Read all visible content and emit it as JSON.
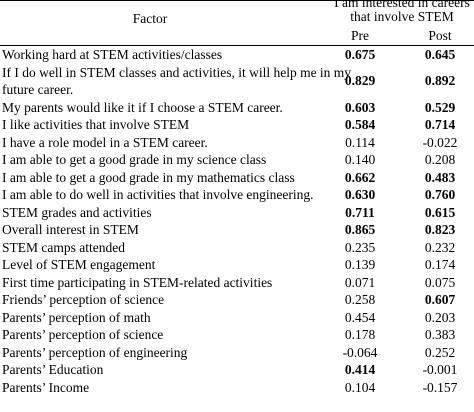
{
  "table": {
    "header": {
      "factor": "Factor",
      "group": [
        "I am interested in careers",
        "that involve STEM"
      ],
      "pre": "Pre",
      "post": "Post"
    },
    "rows": [
      {
        "factor": "Working hard at STEM activities/classes",
        "pre": "0.675",
        "post": "0.645",
        "pre_bold": true,
        "post_bold": true
      },
      {
        "factor": [
          "If I do well in STEM classes and activities, it will help me in my",
          "future career."
        ],
        "pre": "0.829",
        "post": "0.892",
        "pre_bold": true,
        "post_bold": true
      },
      {
        "factor": "My parents would like it if I choose a STEM career.",
        "pre": "0.603",
        "post": "0.529",
        "pre_bold": true,
        "post_bold": true
      },
      {
        "factor": "I like activities that involve STEM",
        "pre": "0.584",
        "post": "0.714",
        "pre_bold": true,
        "post_bold": true
      },
      {
        "factor": "I have a role model in a STEM career.",
        "pre": "0.114",
        "post": "-0.022",
        "pre_bold": false,
        "post_bold": false
      },
      {
        "factor": "I am able to get a good grade in my science class",
        "pre": "0.140",
        "post": "0.208",
        "pre_bold": false,
        "post_bold": false
      },
      {
        "factor": "I am able to get a good grade in my mathematics class",
        "pre": "0.662",
        "post": "0.483",
        "pre_bold": true,
        "post_bold": true
      },
      {
        "factor": "I am able to do well in activities that involve engineering.",
        "pre": "0.630",
        "post": "0.760",
        "pre_bold": true,
        "post_bold": true
      },
      {
        "factor": "STEM grades and activities",
        "pre": "0.711",
        "post": "0.615",
        "pre_bold": true,
        "post_bold": true
      },
      {
        "factor": "Overall interest in STEM",
        "pre": "0.865",
        "post": "0.823",
        "pre_bold": true,
        "post_bold": true
      },
      {
        "factor": "STEM camps attended",
        "pre": "0.235",
        "post": "0.232",
        "pre_bold": false,
        "post_bold": false
      },
      {
        "factor": "Level of STEM engagement",
        "pre": "0.139",
        "post": "0.174",
        "pre_bold": false,
        "post_bold": false
      },
      {
        "factor": "First time participating in STEM-related activities",
        "pre": "0.071",
        "post": "0.075",
        "pre_bold": false,
        "post_bold": false
      },
      {
        "factor": "Friends’ perception of science",
        "pre": "0.258",
        "post": "0.607",
        "pre_bold": false,
        "post_bold": true
      },
      {
        "factor": "Parents’ perception of math",
        "pre": "0.454",
        "post": "0.203",
        "pre_bold": false,
        "post_bold": false
      },
      {
        "factor": "Parents’ perception of science",
        "pre": "0.178",
        "post": "0.383",
        "pre_bold": false,
        "post_bold": false
      },
      {
        "factor": "Parents’ perception of engineering",
        "pre": "-0.064",
        "post": "0.252",
        "pre_bold": false,
        "post_bold": false
      },
      {
        "factor": "Parents’ Education",
        "pre": "0.414",
        "post": "-0.001",
        "pre_bold": true,
        "post_bold": false
      },
      {
        "factor": "Parents’ Income",
        "pre": "0.104",
        "post": "-0.157",
        "pre_bold": false,
        "post_bold": false
      }
    ]
  }
}
